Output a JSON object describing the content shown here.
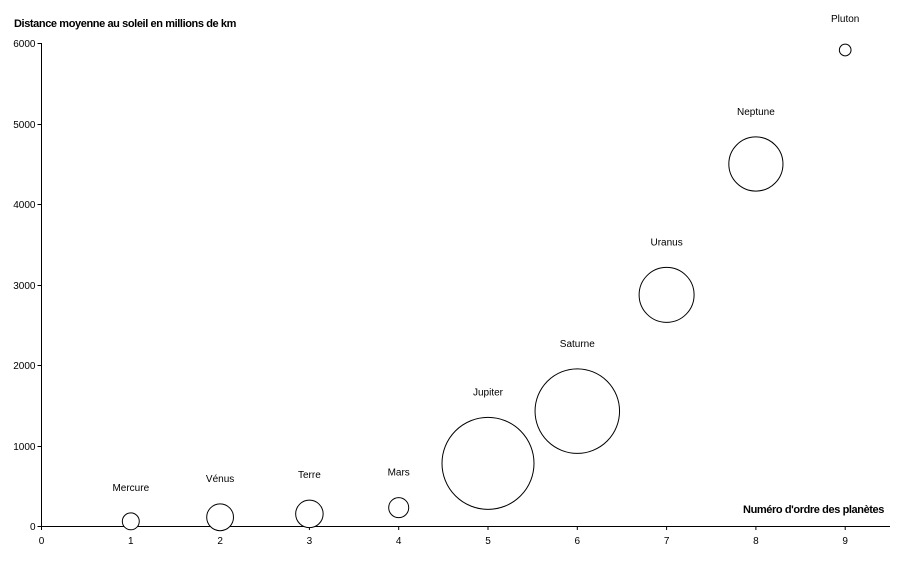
{
  "chart_data": {
    "type": "bubble",
    "title": "",
    "ylabel": "Distance moyenne au soleil en millions de km",
    "xlabel": "Numéro d'ordre des planètes",
    "xlim": [
      0,
      9.5
    ],
    "ylim": [
      0,
      6000
    ],
    "xticks": [
      0,
      1,
      2,
      3,
      4,
      5,
      6,
      7,
      8,
      9
    ],
    "yticks": [
      0,
      1000,
      2000,
      3000,
      4000,
      5000,
      6000
    ],
    "grid": false,
    "legend": "none",
    "points": [
      {
        "name": "Mercure",
        "x": 1,
        "y": 58,
        "size": 0.38
      },
      {
        "name": "Vénus",
        "x": 2,
        "y": 108,
        "size": 0.95
      },
      {
        "name": "Terre",
        "x": 3,
        "y": 150,
        "size": 1.0
      },
      {
        "name": "Mars",
        "x": 4,
        "y": 228,
        "size": 0.53
      },
      {
        "name": "Jupiter",
        "x": 5,
        "y": 778,
        "size": 11.2
      },
      {
        "name": "Saturne",
        "x": 6,
        "y": 1427,
        "size": 9.45
      },
      {
        "name": "Uranus",
        "x": 7,
        "y": 2871,
        "size": 4.0
      },
      {
        "name": "Neptune",
        "x": 8,
        "y": 4497,
        "size": 3.88
      },
      {
        "name": "Pluton",
        "x": 9,
        "y": 5913,
        "size": 0.18
      }
    ]
  }
}
